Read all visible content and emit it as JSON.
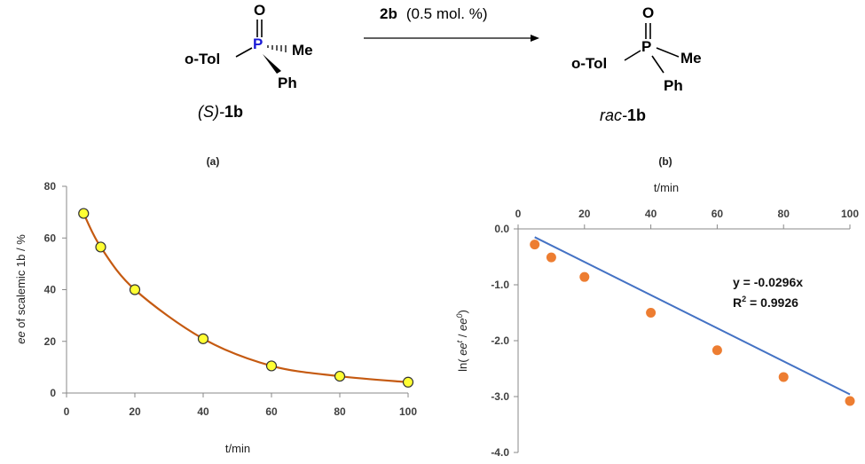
{
  "scheme": {
    "reagent_bold": "2b",
    "reagent_rest": "(0.5 mol. %)",
    "left": {
      "oxygen": "O",
      "phosphorus": "P",
      "otol": "o-Tol",
      "me": "Me",
      "ph": "Ph",
      "label_prefix": "(S)-",
      "label_bold": "1b"
    },
    "right": {
      "oxygen": "O",
      "phosphorus": "P",
      "otol": "o-Tol",
      "me": "Me",
      "ph": "Ph",
      "label_prefix": "rac-",
      "label_bold": "1b"
    }
  },
  "chart_data": [
    {
      "panel": "(a)",
      "type": "line",
      "xlabel": "t/min",
      "ylabel_italic": "ee",
      "ylabel_rest": " of scalemic 1b / %",
      "xlim": [
        0,
        100
      ],
      "ylim": [
        0,
        80
      ],
      "xticks": [
        0,
        20,
        40,
        60,
        80,
        100
      ],
      "yticks": [
        0,
        20,
        40,
        60,
        80
      ],
      "x": [
        5,
        10,
        20,
        40,
        60,
        80,
        100
      ],
      "y": [
        69.5,
        56.5,
        40,
        21,
        10.5,
        6.5,
        4.2
      ],
      "marker_color": "#ffff33",
      "line_color": "#c55a11"
    },
    {
      "panel": "(b)",
      "type": "scatter",
      "xlabel": "t/min",
      "xlabel_position": "top",
      "ylabel": "ln( ee^t / ee^0 )",
      "ylabel_parts": {
        "pre": "ln( ",
        "ee1": "ee",
        "sup1": "t",
        "mid": " / ",
        "ee2": "ee",
        "sup2": "0",
        "post": ")"
      },
      "xlim": [
        0,
        100
      ],
      "ylim": [
        -4.0,
        0.0
      ],
      "xticks": [
        0,
        20,
        40,
        60,
        80,
        100
      ],
      "yticks": [
        "0.0",
        "-1.0",
        "-2.0",
        "-3.0",
        "-4.0"
      ],
      "x": [
        5,
        10,
        20,
        40,
        60,
        80,
        100
      ],
      "y": [
        -0.28,
        -0.51,
        -0.86,
        -1.5,
        -2.17,
        -2.65,
        -3.08
      ],
      "marker_color": "#ed7d31",
      "trendline": {
        "slope": -0.0296,
        "intercept": 0,
        "color": "#4472c4"
      },
      "equation": "y = -0.0296x",
      "r2_label": "R",
      "r2_sup": "2",
      "r2_value": " = 0.9926"
    }
  ]
}
